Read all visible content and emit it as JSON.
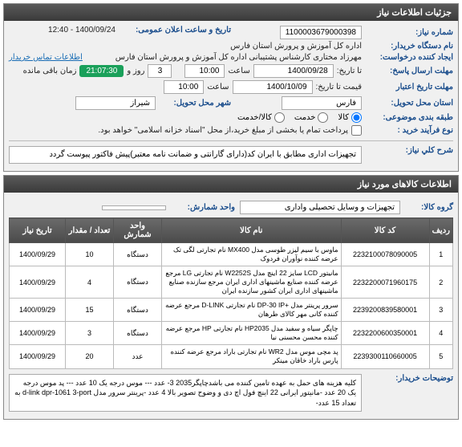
{
  "header": {
    "title": "جزئیات اطلاعات نیاز"
  },
  "fields": {
    "need_no_label": "شماره نیاز:",
    "need_no": "1100003679000398",
    "announce_label": "تاریخ و ساعت اعلان عمومی:",
    "announce_value": "1400/09/24 - 12:40",
    "buyer_label": "نام دستگاه خریدار:",
    "buyer_value": "اداره کل آموزش و پرورش استان فارس",
    "requester_label": "ایجاد کننده درخواست:",
    "requester_value": "مهرزاد مختاری  کارشناس پشتیبانی اداره کل آموزش و پرورش استان فارس",
    "contact_link": "اطلاعات تماس خریدار",
    "deadline_label": "مهلت ارسال پاسخ:",
    "deadline_date_label": "تا تاریخ:",
    "deadline_date": "1400/09/28",
    "time_label": "ساعت",
    "deadline_time": "10:00",
    "remain_label": "زمان باقی مانده",
    "remain_days": "3",
    "remain_days_unit": "روز و",
    "remain_time": "21:07:30",
    "validity_label": "مهلت تاریخ اعتبار",
    "validity_sub": "قیمت تا تاریخ:",
    "validity_date": "1400/10/09",
    "validity_time": "10:00",
    "province_label": "استان محل تحویل:",
    "province": "فارس",
    "city_label": "شهر محل تحویل:",
    "city": "شیراز",
    "subject_cat_label": "طبقه بندی موضوعی:",
    "radio_goods": "کالا",
    "radio_service": "خدمت",
    "radio_both": "کالا/خدمت",
    "purchase_type_label": "نوع فرآیند خرید :",
    "purchase_note": "پرداخت تمام یا بخشی از مبلغ خرید،از محل \"اسناد خزانه اسلامی\" خواهد بود.",
    "need_desc_label": "شرح كلي نیاز:",
    "need_desc": "تجهیزات اداری مطابق با ایران کد(دارای گارانتی و ضمانت نامه معتبر)پیش فاکتور پیوست گردد"
  },
  "goods_header": "اطلاعات کالاهای مورد نیاز",
  "group_label": "گروه کالا:",
  "group_value": "تجهیزات و وسایل تحصیلی واداری",
  "unit_label": "واحد شمارش:",
  "columns": {
    "row": "ردیف",
    "code": "کد کالا",
    "name": "نام کالا",
    "unit": "واحد شمارش",
    "qty": "تعداد / مقدار",
    "date": "تاریخ نیاز"
  },
  "rows": [
    {
      "row": "1",
      "code": "2232100078090005",
      "name": "ماوس با سیم لیزر طوسی مدل MX400 نام تجارتی لگی تک عرضه کننده نوآوران فردوک",
      "unit": "دستگاه",
      "qty": "10",
      "date": "1400/09/29"
    },
    {
      "row": "2",
      "code": "2232200071960175",
      "name": "مانیتور LCD سایز 22 اینچ مدل W2252S نام تجارتی LG مرجع عرضه کننده صنایع ماشینهای اداری ایران مرجع سازنده صنایع ماشینهای اداری ایران کشور سازنده ایران",
      "unit": "دستگاه",
      "qty": "4",
      "date": "1400/09/29"
    },
    {
      "row": "3",
      "code": "2239200839580001",
      "name": "سرور پرینتر مدل +DP-30 IP نام تجارتی D-LINK مرجع عرضه کننده کانی مهر کالای طرهان",
      "unit": "دستگاه",
      "qty": "15",
      "date": "1400/09/29"
    },
    {
      "row": "4",
      "code": "2232200600350001",
      "name": "چاپگر سیاه و سفید مدل HP2035 نام تجارتی HP مرجع عرضه کننده محسن محسنی نیا",
      "unit": "دستگاه",
      "qty": "3",
      "date": "1400/09/29"
    },
    {
      "row": "5",
      "code": "2239300110660005",
      "name": "پد مچی موس مدل WR2 نام تجارتی باراد مرجع عرضه کننده پارس باراد خاقان مینکر",
      "unit": "عدد",
      "qty": "20",
      "date": "1400/09/29"
    }
  ],
  "notes_label": "توضیحات خریدار:",
  "notes": "کلیه هزینه های حمل به عهده تامین کننده می باشدچاپگر2035 3- عدد --- موس درجه یک 10 عدد --- پد موس درجه یک 20 عدد -مانیتور ایرانی 22 اینچ فول اچ دی و وضوح تصویر بالا 4 عدد -پرینتر سرور مدل d-link dpr-1061 3-port به تعداد 15 عدد-"
}
